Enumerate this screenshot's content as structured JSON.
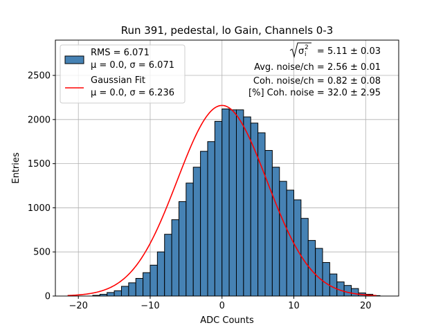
{
  "chart_data": {
    "type": "bar",
    "title": "Run 391, pedestal, lo Gain, Channels 0-3",
    "xlabel": "ADC Counts",
    "ylabel": "Entries",
    "xlim": [
      -23.2,
      24.6
    ],
    "ylim": [
      0,
      2900
    ],
    "xticks": [
      "−20",
      "−10",
      "0",
      "10",
      "20"
    ],
    "xtick_values": [
      -20,
      -10,
      0,
      10,
      20
    ],
    "yticks": [
      "0",
      "500",
      "1000",
      "1500",
      "2000",
      "2500"
    ],
    "ytick_values": [
      0,
      500,
      1000,
      1500,
      2000,
      2500
    ],
    "grid": true,
    "legend_position": "upper-left",
    "histogram": {
      "bin_width": 1,
      "bin_left_edges": [
        -18,
        -17,
        -16,
        -15,
        -14,
        -13,
        -12,
        -11,
        -10,
        -9,
        -8,
        -7,
        -6,
        -5,
        -4,
        -3,
        -2,
        -1,
        0,
        1,
        2,
        3,
        4,
        5,
        6,
        7,
        8,
        9,
        10,
        11,
        12,
        13,
        14,
        15,
        16,
        17,
        18,
        19,
        20,
        21
      ],
      "counts": [
        8,
        20,
        40,
        60,
        110,
        150,
        200,
        265,
        350,
        500,
        700,
        865,
        1070,
        1280,
        1460,
        1640,
        1750,
        1980,
        2120,
        2110,
        2110,
        2030,
        1960,
        1850,
        1650,
        1460,
        1300,
        1200,
        1090,
        880,
        630,
        540,
        380,
        250,
        160,
        120,
        85,
        35,
        20,
        5
      ],
      "color": "#4682b4",
      "edgecolor": "#000000"
    },
    "gaussian_fit": {
      "mu": 0.0,
      "sigma": 6.236,
      "peak": 2160,
      "x_range": [
        -21.5,
        21.5
      ],
      "color": "#ff0000"
    },
    "legend": [
      {
        "kind": "patch",
        "color": "#4682b4",
        "line1": "RMS = 6.071",
        "line2": "μ = 0.0, σ = 6.071"
      },
      {
        "kind": "line",
        "color": "#ff0000",
        "line1": "Gaussian Fit",
        "line2": "μ = 0.0, σ = 6.236"
      }
    ],
    "annotations": {
      "sqrt_sigma_value": " = 5.11 ± 0.03",
      "avg_noise": "Avg. noise/ch = 2.56 ± 0.01",
      "coh_noise": "Coh. noise/ch = 0.82 ± 0.08",
      "pct_coh_noise": "[%] Coh. noise = 32.0 ± 2.95"
    }
  }
}
